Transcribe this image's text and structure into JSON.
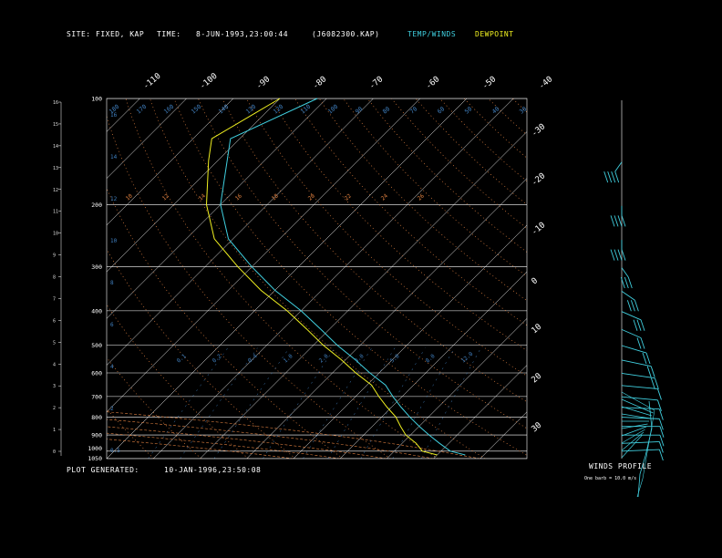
{
  "header": {
    "site_label": "SITE:",
    "site_value": "FIXED, KAP",
    "time_label": "TIME:",
    "time_value": "8-JUN-1993,23:00:44",
    "file_value": "(J6082300.KAP)",
    "legend_temp": "TEMP/WINDS",
    "legend_dew": "DEWPOINT"
  },
  "footer": {
    "plot_generated_label": "PLOT GENERATED:",
    "plot_generated_value": "10-JAN-1996,23:50:08",
    "winds_profile_label": "WINDS PROFILE",
    "winds_profile_note": "One barb = 10.0 m/s"
  },
  "colors": {
    "temp": "#40d0e0",
    "dewpoint": "#f0f020",
    "grid": "#ffffff",
    "isotherm": "#ffffff",
    "dry_adiabat": "#e08040",
    "moist_adiabat": "#e08040",
    "mixing_ratio": "#4080c0",
    "height_label": "#4080c0"
  },
  "chart_data": {
    "type": "line",
    "title": "",
    "pressure_ticks": [
      "100",
      "200",
      "300",
      "400",
      "500",
      "600",
      "700",
      "800",
      "900",
      "1000",
      "1050"
    ],
    "pressure_values": [
      100,
      200,
      300,
      400,
      500,
      600,
      700,
      800,
      900,
      1000,
      1050
    ],
    "height_ticks": [
      "16",
      "15",
      "14",
      "13",
      "12",
      "11",
      "10",
      "9",
      "8",
      "7",
      "6",
      "5",
      "4",
      "3",
      "2",
      "1",
      "0"
    ],
    "top_temp_ticks": [
      "-110",
      "-100",
      "-90",
      "-80",
      "-70",
      "-60",
      "-50",
      "-40"
    ],
    "right_temp_ticks": [
      "-30",
      "-20",
      "-10",
      "0",
      "10",
      "20",
      "30"
    ],
    "theta_labels": [
      "180",
      "170",
      "160",
      "150",
      "140",
      "130",
      "120",
      "110",
      "100",
      "90",
      "80",
      "70",
      "60",
      "50",
      "40",
      "30"
    ],
    "mixing_labels": [
      "0.1",
      "0.2",
      "0.4",
      "1.0",
      "2.0",
      "3.0",
      "5.0",
      "8.0",
      "12.0"
    ],
    "height_km_labels": [
      "10",
      "12",
      "14",
      "16",
      "18",
      "20",
      "22",
      "24",
      "26"
    ],
    "xlim_temp_at_1050": [
      -50,
      40
    ],
    "ylim_pressure": [
      1050,
      100
    ],
    "series": [
      {
        "name": "TEMP/WINDS",
        "points": [
          [
            100,
            -82
          ],
          [
            130,
            -92
          ],
          [
            150,
            -88
          ],
          [
            200,
            -80
          ],
          [
            250,
            -71
          ],
          [
            300,
            -60
          ],
          [
            350,
            -50
          ],
          [
            400,
            -40
          ],
          [
            450,
            -32
          ],
          [
            500,
            -25
          ],
          [
            550,
            -18
          ],
          [
            600,
            -12
          ],
          [
            650,
            -6
          ],
          [
            700,
            -2
          ],
          [
            750,
            2
          ],
          [
            800,
            6
          ],
          [
            850,
            10
          ],
          [
            900,
            14
          ],
          [
            950,
            18
          ],
          [
            1000,
            22
          ],
          [
            1025,
            26
          ]
        ]
      },
      {
        "name": "DEWPOINT",
        "points": [
          [
            100,
            -90
          ],
          [
            130,
            -96
          ],
          [
            150,
            -92
          ],
          [
            200,
            -83
          ],
          [
            250,
            -74
          ],
          [
            300,
            -63
          ],
          [
            350,
            -53
          ],
          [
            400,
            -43
          ],
          [
            450,
            -35
          ],
          [
            500,
            -28
          ],
          [
            550,
            -21
          ],
          [
            600,
            -15
          ],
          [
            650,
            -9
          ],
          [
            700,
            -5
          ],
          [
            750,
            -1
          ],
          [
            800,
            3
          ],
          [
            850,
            6
          ],
          [
            900,
            9
          ],
          [
            950,
            13
          ],
          [
            1000,
            16
          ],
          [
            1025,
            20
          ]
        ]
      }
    ],
    "winds": [
      {
        "p": 150,
        "dir": 280,
        "spd": 40
      },
      {
        "p": 200,
        "dir": 270,
        "spd": 35
      },
      {
        "p": 250,
        "dir": 270,
        "spd": 35
      },
      {
        "p": 300,
        "dir": 260,
        "spd": 30
      },
      {
        "p": 350,
        "dir": 250,
        "spd": 25
      },
      {
        "p": 400,
        "dir": 240,
        "spd": 25
      },
      {
        "p": 450,
        "dir": 240,
        "spd": 20
      },
      {
        "p": 500,
        "dir": 230,
        "spd": 20
      },
      {
        "p": 550,
        "dir": 220,
        "spd": 15
      },
      {
        "p": 600,
        "dir": 210,
        "spd": 15
      },
      {
        "p": 650,
        "dir": 200,
        "spd": 10
      },
      {
        "p": 700,
        "dir": 200,
        "spd": 10
      },
      {
        "p": 750,
        "dir": 190,
        "spd": 10
      },
      {
        "p": 800,
        "dir": 190,
        "spd": 10
      },
      {
        "p": 850,
        "dir": 180,
        "spd": 10
      },
      {
        "p": 900,
        "dir": 180,
        "spd": 10
      },
      {
        "p": 950,
        "dir": 170,
        "spd": 10
      },
      {
        "p": 1000,
        "dir": 170,
        "spd": 10
      }
    ]
  }
}
